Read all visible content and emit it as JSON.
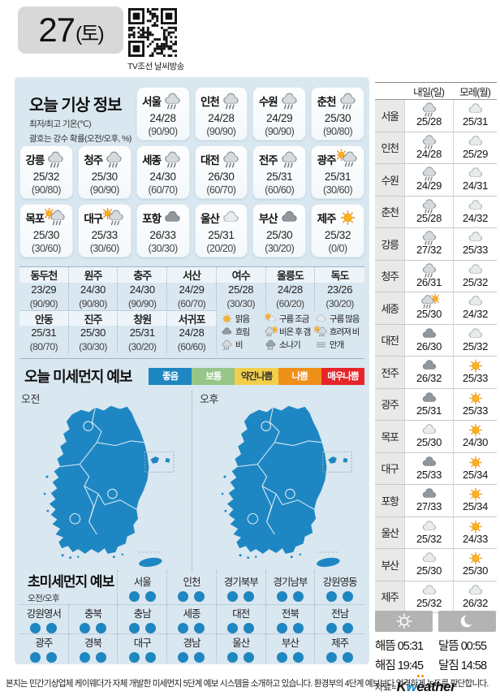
{
  "header": {
    "date_number": "27",
    "date_day": "(토)",
    "qr_caption": "TV조선 날씨방송"
  },
  "today": {
    "title": "오늘 기상 정보",
    "subtitle1": "최저/최고 기온(℃)",
    "subtitle2": "괄호는 강수 확률(오전/오후, %)",
    "cities": [
      {
        "name": "서울",
        "icon": "rain",
        "temp": "24/28",
        "prob": "(90/90)"
      },
      {
        "name": "인천",
        "icon": "rain",
        "temp": "24/28",
        "prob": "(90/90)"
      },
      {
        "name": "수원",
        "icon": "rain",
        "temp": "24/29",
        "prob": "(90/90)"
      },
      {
        "name": "춘천",
        "icon": "rain",
        "temp": "25/30",
        "prob": "(90/80)"
      },
      {
        "name": "강릉",
        "icon": "rain",
        "temp": "25/32",
        "prob": "(90/80)"
      },
      {
        "name": "청주",
        "icon": "rain",
        "temp": "25/30",
        "prob": "(90/90)"
      },
      {
        "name": "세종",
        "icon": "rain",
        "temp": "24/30",
        "prob": "(60/70)"
      },
      {
        "name": "대전",
        "icon": "rain",
        "temp": "26/30",
        "prob": "(60/70)"
      },
      {
        "name": "전주",
        "icon": "rain",
        "temp": "25/31",
        "prob": "(60/60)"
      },
      {
        "name": "광주",
        "icon": "rain-sun-left",
        "temp": "25/31",
        "prob": "(30/60)"
      },
      {
        "name": "목포",
        "icon": "rain-sun-left",
        "temp": "25/30",
        "prob": "(30/60)"
      },
      {
        "name": "대구",
        "icon": "rain-sun-left",
        "temp": "25/33",
        "prob": "(30/60)"
      },
      {
        "name": "포항",
        "icon": "cloud-dark",
        "temp": "26/33",
        "prob": "(30/30)"
      },
      {
        "name": "울산",
        "icon": "cloud-light",
        "temp": "25/31",
        "prob": "(20/20)"
      },
      {
        "name": "부산",
        "icon": "cloud-dark",
        "temp": "25/30",
        "prob": "(30/20)"
      },
      {
        "name": "제주",
        "icon": "sun",
        "temp": "25/32",
        "prob": "(0/0)"
      }
    ]
  },
  "extra_table": {
    "row1": [
      {
        "name": "동두천",
        "temp": "23/29",
        "prob": "(90/90)"
      },
      {
        "name": "원주",
        "temp": "24/30",
        "prob": "(90/80)"
      },
      {
        "name": "충주",
        "temp": "24/30",
        "prob": "(90/90)"
      },
      {
        "name": "서산",
        "temp": "24/29",
        "prob": "(60/70)"
      },
      {
        "name": "여수",
        "temp": "25/28",
        "prob": "(30/30)"
      },
      {
        "name": "울릉도",
        "temp": "24/28",
        "prob": "(60/20)"
      },
      {
        "name": "독도",
        "temp": "23/26",
        "prob": "(30/20)"
      }
    ],
    "row2": [
      {
        "name": "안동",
        "temp": "25/31",
        "prob": "(80/70)"
      },
      {
        "name": "진주",
        "temp": "25/30",
        "prob": "(30/30)"
      },
      {
        "name": "창원",
        "temp": "25/31",
        "prob": "(30/20)"
      },
      {
        "name": "서귀포",
        "temp": "24/28",
        "prob": "(60/60)"
      }
    ]
  },
  "icon_legend": [
    {
      "icon": "sun",
      "label": "맑음"
    },
    {
      "icon": "sun-cloud",
      "label": "구름 조금"
    },
    {
      "icon": "cloud-light",
      "label": "구름 많음"
    },
    {
      "icon": "cloud-dark",
      "label": "흐림"
    },
    {
      "icon": "rain-sun-right",
      "label": "비온 후 갬"
    },
    {
      "icon": "rain-sun-left",
      "label": "흐려져 비"
    },
    {
      "icon": "rain",
      "label": "비"
    },
    {
      "icon": "shower",
      "label": "소나기"
    },
    {
      "icon": "fog",
      "label": "안개"
    }
  ],
  "dust": {
    "title": "오늘 미세먼지 예보",
    "legend": [
      {
        "label": "좋음",
        "bg": "#1e86c0",
        "fg": "#ffffff"
      },
      {
        "label": "보통",
        "bg": "#98c588",
        "fg": "#ffffff"
      },
      {
        "label": "약간나쁨",
        "bg": "#f2cf4a",
        "fg": "#333333"
      },
      {
        "label": "나쁨",
        "bg": "#ef9019",
        "fg": "#ffffff"
      },
      {
        "label": "매우나쁨",
        "bg": "#e5252a",
        "fg": "#ffffff"
      }
    ],
    "maps": [
      {
        "label": "오전"
      },
      {
        "label": "오후"
      }
    ],
    "map_color": "#1e87c3"
  },
  "ultrafine": {
    "title": "초미세먼지 예보",
    "subtitle": "오전/오후",
    "dot_color": "#1e86c0",
    "row1": [
      {
        "name": "서울",
        "am": "좋음",
        "pm": "좋음"
      },
      {
        "name": "인천",
        "am": "좋음",
        "pm": "좋음"
      },
      {
        "name": "경기북부",
        "am": "좋음",
        "pm": "좋음"
      },
      {
        "name": "경기남부",
        "am": "좋음",
        "pm": "좋음"
      },
      {
        "name": "강원영동",
        "am": "좋음",
        "pm": "좋음"
      }
    ],
    "row2": [
      {
        "name": "강원영서",
        "am": "좋음",
        "pm": "좋음"
      },
      {
        "name": "충북",
        "am": "좋음",
        "pm": "좋음"
      },
      {
        "name": "충남",
        "am": "좋음",
        "pm": "좋음"
      },
      {
        "name": "세종",
        "am": "좋음",
        "pm": "좋음"
      },
      {
        "name": "대전",
        "am": "좋음",
        "pm": "좋음"
      },
      {
        "name": "전북",
        "am": "좋음",
        "pm": "좋음"
      },
      {
        "name": "전남",
        "am": "좋음",
        "pm": "좋음"
      }
    ],
    "row3": [
      {
        "name": "광주",
        "am": "좋음",
        "pm": "좋음"
      },
      {
        "name": "경북",
        "am": "좋음",
        "pm": "좋음"
      },
      {
        "name": "대구",
        "am": "좋음",
        "pm": "좋음"
      },
      {
        "name": "경남",
        "am": "좋음",
        "pm": "좋음"
      },
      {
        "name": "울산",
        "am": "좋음",
        "pm": "좋음"
      },
      {
        "name": "부산",
        "am": "좋음",
        "pm": "좋음"
      },
      {
        "name": "제주",
        "am": "좋음",
        "pm": "좋음"
      }
    ]
  },
  "outlook": {
    "col1": "내일(일)",
    "col2": "모레(월)",
    "rows": [
      {
        "city": "서울",
        "d1_icon": "rain",
        "d1": "25/28",
        "d2_icon": "cloud-light",
        "d2": "25/31"
      },
      {
        "city": "인천",
        "d1_icon": "rain",
        "d1": "24/28",
        "d2_icon": "cloud-light",
        "d2": "25/29"
      },
      {
        "city": "수원",
        "d1_icon": "rain",
        "d1": "24/29",
        "d2_icon": "cloud-light",
        "d2": "24/31"
      },
      {
        "city": "춘천",
        "d1_icon": "rain",
        "d1": "25/28",
        "d2_icon": "cloud-light",
        "d2": "24/32"
      },
      {
        "city": "강릉",
        "d1_icon": "rain",
        "d1": "27/32",
        "d2_icon": "cloud-light",
        "d2": "25/33"
      },
      {
        "city": "청주",
        "d1_icon": "rain",
        "d1": "26/31",
        "d2_icon": "cloud-light",
        "d2": "25/32"
      },
      {
        "city": "세종",
        "d1_icon": "rain-sun-right",
        "d1": "25/30",
        "d2_icon": "cloud-light",
        "d2": "24/32"
      },
      {
        "city": "대전",
        "d1_icon": "cloud-dark",
        "d1": "26/30",
        "d2_icon": "cloud-light",
        "d2": "25/32"
      },
      {
        "city": "전주",
        "d1_icon": "cloud-dark",
        "d1": "26/32",
        "d2_icon": "sun",
        "d2": "25/33"
      },
      {
        "city": "광주",
        "d1_icon": "cloud-dark",
        "d1": "25/31",
        "d2_icon": "sun",
        "d2": "25/33"
      },
      {
        "city": "목포",
        "d1_icon": "cloud-light",
        "d1": "25/30",
        "d2_icon": "sun",
        "d2": "24/30"
      },
      {
        "city": "대구",
        "d1_icon": "cloud-dark",
        "d1": "25/33",
        "d2_icon": "sun",
        "d2": "25/34"
      },
      {
        "city": "포항",
        "d1_icon": "cloud-dark",
        "d1": "27/33",
        "d2_icon": "sun",
        "d2": "25/34"
      },
      {
        "city": "울산",
        "d1_icon": "cloud-light",
        "d1": "25/32",
        "d2_icon": "sun",
        "d2": "24/33"
      },
      {
        "city": "부산",
        "d1_icon": "cloud-light",
        "d1": "25/30",
        "d2_icon": "sun",
        "d2": "25/30"
      },
      {
        "city": "제주",
        "d1_icon": "cloud-light",
        "d1": "25/32",
        "d2_icon": "cloud-light",
        "d2": "26/32"
      }
    ]
  },
  "astro": {
    "sunrise_label": "해뜸",
    "sunrise": "05:31",
    "sunset_label": "해짐",
    "sunset": "19:45",
    "moonrise_label": "달뜸",
    "moonrise": "00:55",
    "moonset_label": "달짐",
    "moonset": "14:58",
    "source_label": "자료=",
    "brand_k": "K",
    "brand_w": "w",
    "brand_e": "e",
    "brand_rest": "ather"
  },
  "footer": {
    "text": "본지는 민간기상업체 케이웨더가 자체 개발한 미세먼지 5단계 예보 시스템을 소개하고 있습니다. 환경부의 4단계 예보보다 엄격하게 농도를 판단합니다."
  }
}
